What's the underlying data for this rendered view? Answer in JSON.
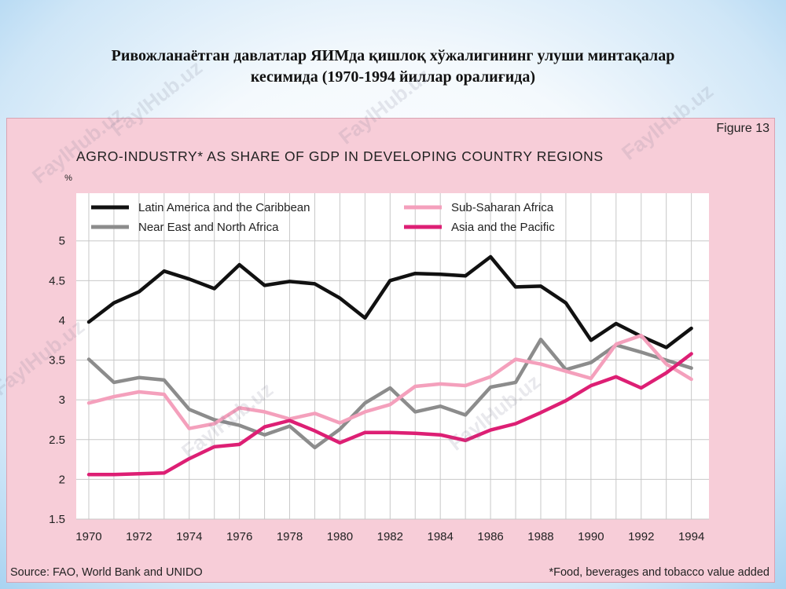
{
  "slide": {
    "title_line1": "Ривожланаётган давлатлар ЯИМда қишлоқ хўжалигининг улуши минтақалар",
    "title_line2": "кесимида (1970-1994 йиллар оралиғида)"
  },
  "figure": {
    "label": "Figure 13",
    "source": "Source: FAO, World Bank and UNIDO",
    "footnote": "*Food, beverages and tobacco value added"
  },
  "watermark": "FaylHub.uz",
  "colors": {
    "background_pink": "#f7cdd8",
    "plot_bg": "#ffffff",
    "grid": "#c8c8c8"
  },
  "chart_data": {
    "type": "line",
    "title": "AGRO-INDUSTRY* AS SHARE OF GDP IN DEVELOPING COUNTRY REGIONS",
    "ylabel": "%",
    "xlabel": "",
    "x": [
      1970,
      1971,
      1972,
      1973,
      1974,
      1975,
      1976,
      1977,
      1978,
      1979,
      1980,
      1981,
      1982,
      1983,
      1984,
      1985,
      1986,
      1987,
      1988,
      1989,
      1990,
      1991,
      1992,
      1993,
      1994
    ],
    "x_ticks": [
      "1970",
      "1972",
      "1974",
      "1976",
      "1978",
      "1980",
      "1982",
      "1984",
      "1986",
      "1988",
      "1990",
      "1992",
      "1994"
    ],
    "y_ticks": [
      "1.5",
      "2",
      "2.5",
      "3",
      "3.5",
      "4",
      "4.5",
      "5"
    ],
    "ylim": [
      1.5,
      5.6
    ],
    "xlim": [
      1969.5,
      1994.7
    ],
    "grid": true,
    "legend_position": "top-left",
    "series": [
      {
        "name": "Latin America and the Caribbean",
        "color": "#111111",
        "values": [
          3.98,
          4.22,
          4.36,
          4.62,
          4.52,
          4.4,
          4.7,
          4.44,
          4.49,
          4.46,
          4.28,
          4.03,
          4.5,
          4.59,
          4.58,
          4.56,
          4.8,
          4.42,
          4.43,
          4.22,
          3.75,
          3.96,
          3.8,
          3.66,
          3.9
        ]
      },
      {
        "name": "Near East and North Africa",
        "color": "#8c8c8c",
        "values": [
          3.51,
          3.22,
          3.28,
          3.25,
          2.88,
          2.75,
          2.68,
          2.56,
          2.67,
          2.4,
          2.63,
          2.96,
          3.15,
          2.85,
          2.92,
          2.81,
          3.16,
          3.22,
          3.76,
          3.38,
          3.47,
          3.69,
          3.6,
          3.5,
          3.4
        ]
      },
      {
        "name": "Sub-Saharan Africa",
        "color": "#f4a0bc",
        "values": [
          2.96,
          3.04,
          3.1,
          3.07,
          2.64,
          2.7,
          2.9,
          2.85,
          2.76,
          2.83,
          2.71,
          2.85,
          2.94,
          3.17,
          3.2,
          3.18,
          3.29,
          3.51,
          3.45,
          3.36,
          3.27,
          3.7,
          3.81,
          3.45,
          3.26
        ]
      },
      {
        "name": "Asia and the Pacific",
        "color": "#dd1f74",
        "values": [
          2.06,
          2.06,
          2.07,
          2.08,
          2.26,
          2.41,
          2.44,
          2.66,
          2.74,
          2.61,
          2.46,
          2.59,
          2.59,
          2.58,
          2.56,
          2.49,
          2.62,
          2.7,
          2.84,
          2.99,
          3.18,
          3.29,
          3.15,
          3.34,
          3.58
        ]
      }
    ]
  }
}
